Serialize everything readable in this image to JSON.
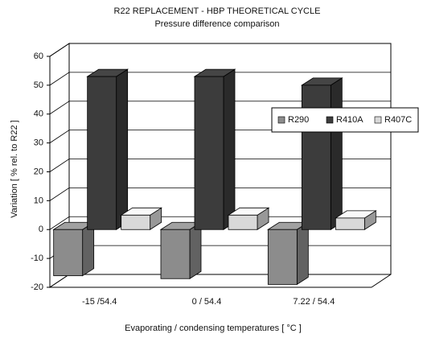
{
  "chart_data": {
    "type": "bar3d",
    "title": "R22 REPLACEMENT - HBP THEORETICAL CYCLE",
    "subtitle": "Pressure difference comparison",
    "x_label": "Evaporating / condensing temperatures [ °C ]",
    "y_label": "Variation [ % rel. to R22 ]",
    "categories": [
      "-15 /54.4",
      "0 / 54.4",
      "7.22 / 54.4"
    ],
    "series": [
      {
        "name": "R290",
        "color": "#8c8c8c",
        "values": [
          -16,
          -17,
          -19
        ]
      },
      {
        "name": "R410A",
        "color": "#3c3c3c",
        "values": [
          53,
          53,
          50
        ]
      },
      {
        "name": "R407C",
        "color": "#d9d9d9",
        "values": [
          5,
          5,
          4
        ]
      }
    ],
    "ylim": [
      -20,
      60
    ],
    "yticks": [
      -20,
      -10,
      0,
      10,
      20,
      30,
      40,
      50,
      60
    ],
    "grid": true,
    "legend": "right"
  }
}
